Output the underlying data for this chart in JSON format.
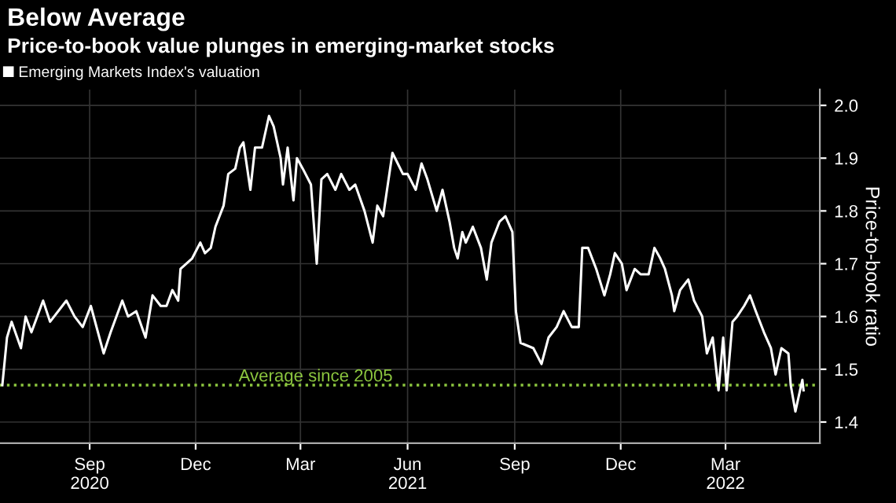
{
  "chart_data": {
    "type": "line",
    "title": "Below Average",
    "subtitle": "Price-to-book value plunges in emerging-market stocks",
    "ylabel": "Price-to-book ratio",
    "x": [
      "2020-06-18",
      "2020-06-22",
      "2020-06-26",
      "2020-07-04",
      "2020-07-08",
      "2020-07-13",
      "2020-07-23",
      "2020-07-29",
      "2020-08-12",
      "2020-08-19",
      "2020-08-26",
      "2020-09-02",
      "2020-09-13",
      "2020-09-19",
      "2020-09-29",
      "2020-10-04",
      "2020-10-11",
      "2020-10-19",
      "2020-10-25",
      "2020-11-01",
      "2020-11-06",
      "2020-11-11",
      "2020-11-16",
      "2020-11-18",
      "2020-11-28",
      "2020-12-05",
      "2020-12-09",
      "2020-12-14",
      "2020-12-18",
      "2020-12-25",
      "2020-12-29",
      "2021-01-04",
      "2021-01-08",
      "2021-01-11",
      "2021-01-17",
      "2021-01-21",
      "2021-01-27",
      "2021-02-02",
      "2021-02-06",
      "2021-02-12",
      "2021-02-14",
      "2021-02-18",
      "2021-02-23",
      "2021-02-26",
      "2021-03-03",
      "2021-03-10",
      "2021-03-15",
      "2021-03-19",
      "2021-03-24",
      "2021-03-31",
      "2021-04-05",
      "2021-04-12",
      "2021-04-17",
      "2021-04-25",
      "2021-05-02",
      "2021-05-06",
      "2021-05-11",
      "2021-05-19",
      "2021-05-28",
      "2021-06-01",
      "2021-06-08",
      "2021-06-13",
      "2021-06-18",
      "2021-06-26",
      "2021-07-01",
      "2021-07-07",
      "2021-07-11",
      "2021-07-14",
      "2021-07-18",
      "2021-07-21",
      "2021-07-27",
      "2021-08-03",
      "2021-08-08",
      "2021-08-12",
      "2021-08-19",
      "2021-08-24",
      "2021-08-30",
      "2021-09-02",
      "2021-09-06",
      "2021-09-17",
      "2021-09-24",
      "2021-09-30",
      "2021-10-07",
      "2021-10-13",
      "2021-10-20",
      "2021-10-26",
      "2021-10-29",
      "2021-11-03",
      "2021-11-10",
      "2021-11-17",
      "2021-11-22",
      "2021-11-26",
      "2021-12-02",
      "2021-12-06",
      "2021-12-13",
      "2021-12-18",
      "2021-12-25",
      "2021-12-30",
      "2022-01-04",
      "2022-01-08",
      "2022-01-14",
      "2022-01-16",
      "2022-01-21",
      "2022-01-28",
      "2022-02-02",
      "2022-02-09",
      "2022-02-13",
      "2022-02-18",
      "2022-02-23",
      "2022-02-27",
      "2022-03-02",
      "2022-03-07",
      "2022-03-11",
      "2022-03-17",
      "2022-03-22",
      "2022-03-27",
      "2022-04-03",
      "2022-04-09",
      "2022-04-13",
      "2022-04-18",
      "2022-04-24",
      "2022-04-26",
      "2022-04-30",
      "2022-05-06",
      "2022-05-07"
    ],
    "series": [
      {
        "name": "Emerging Markets Index's valuation",
        "color": "#ffffff",
        "values": [
          1.47,
          1.56,
          1.59,
          1.54,
          1.6,
          1.57,
          1.63,
          1.59,
          1.63,
          1.6,
          1.58,
          1.62,
          1.53,
          1.57,
          1.63,
          1.6,
          1.61,
          1.56,
          1.64,
          1.62,
          1.62,
          1.65,
          1.63,
          1.69,
          1.71,
          1.74,
          1.72,
          1.73,
          1.77,
          1.81,
          1.87,
          1.88,
          1.92,
          1.93,
          1.84,
          1.92,
          1.92,
          1.98,
          1.96,
          1.9,
          1.85,
          1.92,
          1.82,
          1.9,
          1.88,
          1.85,
          1.7,
          1.86,
          1.87,
          1.84,
          1.87,
          1.84,
          1.85,
          1.8,
          1.74,
          1.81,
          1.79,
          1.91,
          1.87,
          1.87,
          1.84,
          1.89,
          1.86,
          1.8,
          1.84,
          1.78,
          1.73,
          1.71,
          1.76,
          1.74,
          1.77,
          1.73,
          1.67,
          1.74,
          1.78,
          1.79,
          1.76,
          1.61,
          1.55,
          1.54,
          1.51,
          1.56,
          1.58,
          1.61,
          1.58,
          1.58,
          1.73,
          1.73,
          1.69,
          1.64,
          1.68,
          1.72,
          1.7,
          1.65,
          1.69,
          1.68,
          1.68,
          1.73,
          1.71,
          1.69,
          1.64,
          1.61,
          1.65,
          1.67,
          1.63,
          1.6,
          1.53,
          1.56,
          1.46,
          1.56,
          1.46,
          1.59,
          1.6,
          1.62,
          1.64,
          1.61,
          1.57,
          1.54,
          1.49,
          1.54,
          1.53,
          1.47,
          1.42,
          1.48,
          1.46
        ]
      }
    ],
    "xlim": [
      "2020-06-16",
      "2022-05-21"
    ],
    "xticks": [
      {
        "value": "2020-09-01",
        "label": "Sep\n2020"
      },
      {
        "value": "2020-12-01",
        "label": "Dec"
      },
      {
        "value": "2021-03-01",
        "label": "Mar"
      },
      {
        "value": "2021-06-01",
        "label": "Jun\n2021"
      },
      {
        "value": "2021-09-01",
        "label": "Sep"
      },
      {
        "value": "2021-12-01",
        "label": "Dec"
      },
      {
        "value": "2022-03-01",
        "label": "Mar\n2022"
      }
    ],
    "ylim": [
      1.36,
      2.03
    ],
    "yticks": [
      1.4,
      1.5,
      1.6,
      1.7,
      1.8,
      1.9,
      {
        "value": 2.0,
        "label": "2.0"
      }
    ],
    "ref_lines": [
      {
        "axis": "y",
        "value": 1.47,
        "label": "Average since 2005",
        "color": "#8cc63f",
        "line_style": "dotted"
      }
    ],
    "grid": true,
    "legend": "top left",
    "line_style": "solid",
    "marker": "none"
  }
}
